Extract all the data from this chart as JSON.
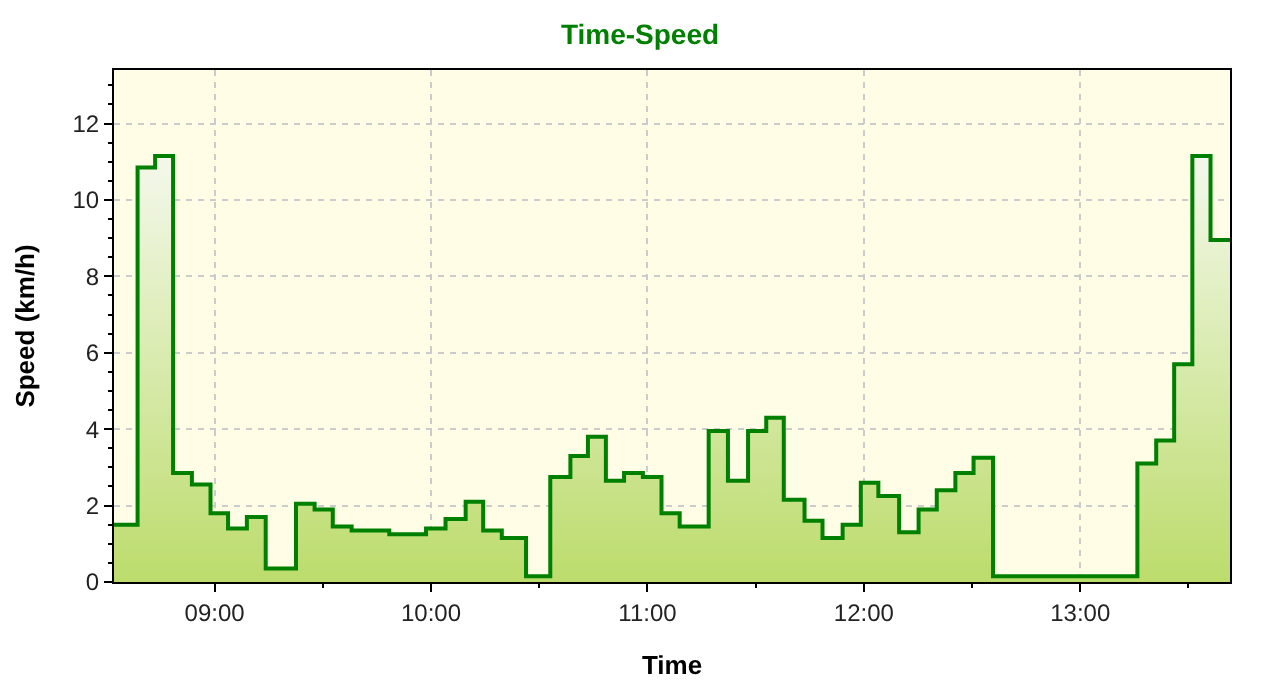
{
  "chart_data": {
    "type": "area",
    "title": "Time-Speed",
    "xlabel": "Time",
    "ylabel": "Speed (km/h)",
    "x": [
      8.535,
      8.644,
      8.644,
      8.725,
      8.725,
      8.808,
      8.808,
      8.895,
      8.895,
      8.981,
      8.981,
      9.062,
      9.062,
      9.149,
      9.149,
      9.236,
      9.236,
      9.376,
      9.376,
      9.462,
      9.462,
      9.546,
      9.546,
      9.633,
      9.633,
      9.807,
      9.807,
      9.977,
      9.977,
      10.067,
      10.067,
      10.16,
      10.16,
      10.241,
      10.241,
      10.327,
      10.327,
      10.439,
      10.439,
      10.551,
      10.551,
      10.644,
      10.644,
      10.725,
      10.725,
      10.808,
      10.808,
      10.892,
      10.892,
      10.979,
      10.979,
      11.065,
      11.065,
      11.149,
      11.149,
      11.283,
      11.283,
      11.372,
      11.372,
      11.465,
      11.465,
      11.549,
      11.549,
      11.63,
      11.63,
      11.726,
      11.726,
      11.809,
      11.809,
      11.902,
      11.902,
      11.986,
      11.986,
      12.067,
      12.067,
      12.163,
      12.163,
      12.253,
      12.253,
      12.337,
      12.337,
      12.423,
      12.423,
      12.507,
      12.507,
      12.597,
      12.597,
      13.264,
      13.264,
      13.351,
      13.351,
      13.434,
      13.434,
      13.518,
      13.518,
      13.602,
      13.602,
      13.692
    ],
    "series": [
      {
        "color": "#008000",
        "values": [
          1.5,
          1.5,
          10.85,
          10.85,
          11.15,
          11.15,
          2.85,
          2.85,
          2.55,
          2.55,
          1.8,
          1.8,
          1.4,
          1.4,
          1.7,
          1.7,
          0.35,
          0.35,
          2.05,
          2.05,
          1.9,
          1.9,
          1.45,
          1.45,
          1.35,
          1.35,
          1.25,
          1.25,
          1.4,
          1.4,
          1.65,
          1.65,
          2.1,
          2.1,
          1.35,
          1.35,
          1.15,
          1.15,
          0.15,
          0.15,
          2.75,
          2.75,
          3.3,
          3.3,
          3.8,
          3.8,
          2.65,
          2.65,
          2.85,
          2.85,
          2.75,
          2.75,
          1.8,
          1.8,
          1.45,
          1.45,
          3.95,
          3.95,
          2.65,
          2.65,
          3.95,
          3.95,
          4.3,
          4.3,
          2.15,
          2.15,
          1.6,
          1.6,
          1.15,
          1.15,
          1.5,
          1.5,
          2.6,
          2.6,
          2.25,
          2.25,
          1.3,
          1.3,
          1.9,
          1.9,
          2.4,
          2.4,
          2.85,
          2.85,
          3.25,
          3.25,
          0.15,
          0.15,
          3.1,
          3.1,
          3.7,
          3.7,
          5.7,
          5.7,
          11.15,
          11.15,
          8.95,
          8.95
        ]
      }
    ],
    "xlim": [
      8.535,
      13.692
    ],
    "xticks": [
      {
        "value": 9,
        "label": "09:00"
      },
      {
        "value": 10,
        "label": "10:00"
      },
      {
        "value": 11,
        "label": "11:00"
      },
      {
        "value": 12,
        "label": "12:00"
      },
      {
        "value": 13,
        "label": "13:00"
      }
    ],
    "ylim": [
      0,
      13.4
    ],
    "yticks": [
      0,
      2,
      4,
      6,
      8,
      10,
      12
    ],
    "grid": true
  }
}
